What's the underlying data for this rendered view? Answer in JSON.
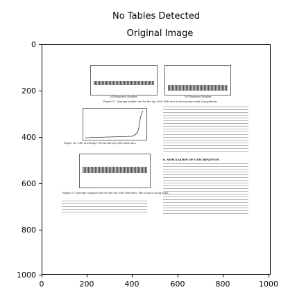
{
  "figure": {
    "suptitle": "No Tables Detected",
    "axes_title": "Original Image",
    "y_ticks": [
      "0",
      "200",
      "400",
      "600",
      "800",
      "1000"
    ],
    "x_ticks": [
      "0",
      "200",
      "400",
      "600",
      "800",
      "1000"
    ]
  },
  "document": {
    "caption_fig17": "Figure 17: Average header size for the top 5000 Web sites in decreasing order of popularity.",
    "caption_fig18": "Figure 18: CDF of average TTL for the top 5000 Web sites.",
    "caption_fig19": "Figure 19: Average response size for the top 5000 Web sites. The x-axis is in log scale.",
    "section_heading": "6. SIMULATION OF CDN BENEFITS",
    "axis_label_left": "(a) Response Number",
    "axis_label_right": "(b) Response Number"
  }
}
